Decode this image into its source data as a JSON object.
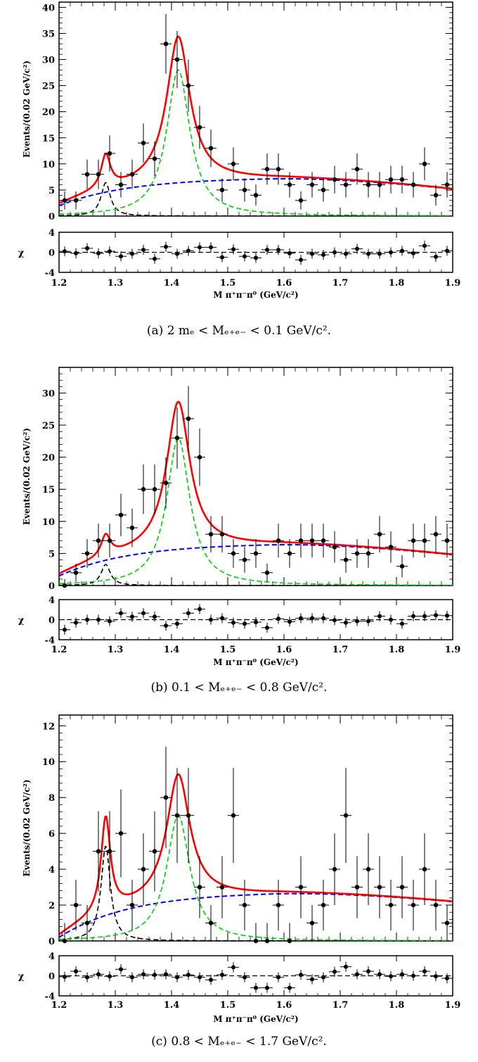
{
  "labels": {
    "ylabel": "Events/(0.02 GeV/c²)",
    "xlabel": "M π⁺π⁻π⁰ (GeV/c²)",
    "res_label": "χ"
  },
  "chart_data": [
    {
      "type": "scatter",
      "caption": "(a) 2 mₑ < Mₑ₊ₑ₋ < 0.1 GeV/c².",
      "xlim": [
        1.2,
        1.9
      ],
      "ylim": [
        0,
        41
      ],
      "yticks": [
        0,
        5,
        10,
        15,
        20,
        25,
        30,
        35,
        40
      ],
      "xticks": [
        1.2,
        1.3,
        1.4,
        1.5,
        1.6,
        1.7,
        1.8,
        1.9
      ],
      "residual_ylim": [
        -4,
        4
      ],
      "residual_yticks": [
        -4,
        0,
        4
      ],
      "series": [
        {
          "kind": "data",
          "x": [
            1.21,
            1.23,
            1.25,
            1.27,
            1.29,
            1.31,
            1.33,
            1.35,
            1.37,
            1.39,
            1.41,
            1.43,
            1.45,
            1.47,
            1.49,
            1.51,
            1.53,
            1.55,
            1.57,
            1.59,
            1.61,
            1.63,
            1.65,
            1.67,
            1.69,
            1.71,
            1.73,
            1.75,
            1.77,
            1.79,
            1.81,
            1.83,
            1.85,
            1.87,
            1.89
          ],
          "y": [
            3,
            3,
            8,
            8,
            12,
            6,
            8,
            14,
            11,
            33,
            30,
            25,
            17,
            13,
            5,
            10,
            5,
            4,
            9,
            9,
            6,
            3,
            6,
            5,
            7,
            6,
            9,
            6,
            6,
            7,
            7,
            6,
            10,
            4,
            6
          ]
        },
        {
          "kind": "total",
          "color": "#ff0000"
        },
        {
          "kind": "f2(1270)",
          "color": "#000000",
          "mass": 1.283,
          "width": 0.02,
          "peak": 6.4
        },
        {
          "kind": "eta(1405)",
          "color": "#00cc00",
          "mass": 1.412,
          "width": 0.05,
          "peak": 28
        },
        {
          "kind": "background",
          "color": "#0000ff",
          "at_1_2": 2.0,
          "max": 7.4,
          "at_1_9": 5.2
        }
      ],
      "residuals": [
        0.2,
        -0.2,
        0.8,
        -0.2,
        0.2,
        -0.8,
        -0.3,
        0.5,
        -1.3,
        1.1,
        -0.3,
        0.3,
        1.0,
        1.0,
        -1.0,
        0.6,
        -0.8,
        -1.1,
        0.5,
        0.5,
        -0.2,
        -1.5,
        -0.3,
        -0.5,
        0.0,
        -0.3,
        0.7,
        -0.3,
        -0.3,
        0.0,
        0.3,
        -0.2,
        1.3,
        -0.9,
        0.3
      ]
    },
    {
      "type": "scatter",
      "caption": "(b)  0.1 < Mₑ₊ₑ₋ < 0.8 GeV/c².",
      "xlim": [
        1.2,
        1.9
      ],
      "ylim": [
        0,
        34
      ],
      "yticks": [
        0,
        5,
        10,
        15,
        20,
        25,
        30
      ],
      "xticks": [
        1.2,
        1.3,
        1.4,
        1.5,
        1.6,
        1.7,
        1.8,
        1.9
      ],
      "residual_ylim": [
        -4,
        4
      ],
      "residual_yticks": [
        -4,
        0,
        4
      ],
      "series": [
        {
          "kind": "data",
          "x": [
            1.21,
            1.23,
            1.25,
            1.27,
            1.29,
            1.31,
            1.33,
            1.35,
            1.37,
            1.39,
            1.41,
            1.43,
            1.45,
            1.47,
            1.49,
            1.51,
            1.53,
            1.55,
            1.57,
            1.59,
            1.61,
            1.63,
            1.65,
            1.67,
            1.69,
            1.71,
            1.73,
            1.75,
            1.77,
            1.79,
            1.81,
            1.83,
            1.85,
            1.87,
            1.89
          ],
          "y": [
            0,
            2,
            5,
            7,
            7,
            11,
            9,
            15,
            15,
            16,
            23,
            26,
            20,
            8,
            8,
            5,
            4,
            5,
            2,
            7,
            5,
            7,
            7,
            7,
            6,
            4,
            5,
            5,
            8,
            6,
            3,
            7,
            7,
            8,
            7
          ]
        },
        {
          "kind": "total",
          "color": "#ff0000"
        },
        {
          "kind": "f2(1270)",
          "color": "#000000",
          "mass": 1.283,
          "width": 0.02,
          "peak": 3.3
        },
        {
          "kind": "eta(1405)",
          "color": "#00cc00",
          "mass": 1.412,
          "width": 0.05,
          "peak": 23
        },
        {
          "kind": "background",
          "color": "#0000ff",
          "at_1_2": 1.5,
          "max": 6.6,
          "at_1_9": 4.8
        }
      ],
      "residuals": [
        -2.0,
        -0.6,
        0.0,
        0.0,
        -0.3,
        1.3,
        0.6,
        1.3,
        0.6,
        -1.2,
        -0.8,
        1.3,
        2.1,
        0.0,
        0.3,
        -0.6,
        -0.8,
        -0.5,
        -1.6,
        0.2,
        -0.4,
        0.3,
        0.3,
        0.3,
        -0.1,
        -0.6,
        -0.3,
        -0.3,
        0.7,
        0.0,
        -0.8,
        0.7,
        0.7,
        0.9,
        0.8
      ]
    },
    {
      "type": "scatter",
      "caption": "(c)  0.8 < Mₑ₊ₑ₋ < 1.7 GeV/c².",
      "xlim": [
        1.2,
        1.9
      ],
      "ylim": [
        0,
        12.6
      ],
      "yticks": [
        0,
        2,
        4,
        6,
        8,
        10,
        12
      ],
      "xticks": [
        1.2,
        1.3,
        1.4,
        1.5,
        1.6,
        1.7,
        1.8,
        1.9
      ],
      "residual_ylim": [
        -4,
        4
      ],
      "residual_yticks": [
        -4,
        0,
        4
      ],
      "series": [
        {
          "kind": "data",
          "x": [
            1.21,
            1.23,
            1.25,
            1.27,
            1.29,
            1.31,
            1.33,
            1.35,
            1.37,
            1.39,
            1.41,
            1.43,
            1.45,
            1.47,
            1.49,
            1.51,
            1.53,
            1.55,
            1.57,
            1.59,
            1.61,
            1.63,
            1.65,
            1.67,
            1.69,
            1.71,
            1.73,
            1.75,
            1.77,
            1.79,
            1.81,
            1.83,
            1.85,
            1.87,
            1.89
          ],
          "y": [
            0,
            2,
            1,
            5,
            5,
            6,
            2,
            4,
            5,
            8,
            7,
            7,
            3,
            1,
            3,
            7,
            2,
            0,
            0,
            2,
            0,
            3,
            1,
            2,
            4,
            7,
            3,
            4,
            3,
            2,
            3,
            2,
            4,
            2,
            1
          ]
        },
        {
          "kind": "total",
          "color": "#ff0000"
        },
        {
          "kind": "f2(1270)",
          "color": "#000000",
          "mass": 1.283,
          "width": 0.02,
          "peak": 5.3
        },
        {
          "kind": "eta(1405)",
          "color": "#00cc00",
          "mass": 1.412,
          "width": 0.05,
          "peak": 7.0
        },
        {
          "kind": "background",
          "color": "#0000ff",
          "at_1_2": 0.2,
          "max": 2.75,
          "at_1_9": 2.2
        }
      ],
      "residuals": [
        -0.2,
        0.9,
        -0.3,
        0.3,
        -0.1,
        1.3,
        -0.3,
        0.3,
        0.2,
        0.3,
        -0.3,
        0.2,
        -0.3,
        -0.8,
        0.2,
        1.7,
        -0.3,
        -2.4,
        -2.4,
        -0.3,
        -2.4,
        0.2,
        -0.7,
        -0.3,
        0.8,
        1.8,
        0.3,
        0.9,
        0.3,
        -0.1,
        0.3,
        0.0,
        0.9,
        -0.1,
        -0.5
      ]
    }
  ]
}
